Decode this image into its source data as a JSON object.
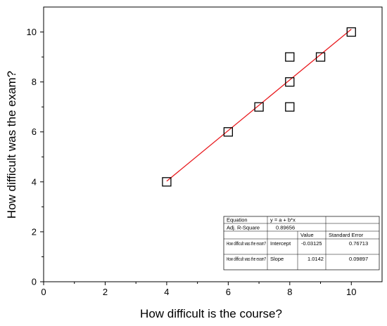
{
  "chart_data": {
    "type": "scatter",
    "title": "",
    "xlabel": "How difficult is the course?",
    "ylabel": "How difficult was the exam?",
    "xlim": [
      0,
      11
    ],
    "ylim": [
      0,
      11
    ],
    "xticks": [
      0,
      2,
      4,
      6,
      8,
      10
    ],
    "yticks": [
      0,
      2,
      4,
      6,
      8,
      10
    ],
    "xtick_labels": [
      "0",
      "2",
      "4",
      "6",
      "8",
      "10"
    ],
    "ytick_labels": [
      "0",
      "2",
      "4",
      "6",
      "8",
      "10"
    ],
    "grid": false,
    "marker": "open-square",
    "points": [
      {
        "x": 4,
        "y": 4
      },
      {
        "x": 6,
        "y": 6
      },
      {
        "x": 7,
        "y": 7
      },
      {
        "x": 8,
        "y": 7
      },
      {
        "x": 8,
        "y": 8
      },
      {
        "x": 8,
        "y": 9
      },
      {
        "x": 9,
        "y": 9
      },
      {
        "x": 10,
        "y": 10
      }
    ],
    "fit_line": {
      "intercept": -0.03125,
      "slope": 1.0142,
      "x_range": [
        4,
        10
      ],
      "color": "#e8191d"
    },
    "stats_table": {
      "placement": "bottom-right",
      "rows": [
        [
          "Equation",
          "y = a + b*x",
          "",
          ""
        ],
        [
          "Adj. R-Square",
          "0.89656",
          "",
          ""
        ],
        [
          "",
          "",
          "Value",
          "Standard Error"
        ],
        [
          "How difficult was the exam?",
          "Intercept",
          "-0.03125",
          "0.76713"
        ],
        [
          "How difficult was the exam?",
          "Slope",
          "1.0142",
          "0.09897"
        ]
      ]
    }
  }
}
